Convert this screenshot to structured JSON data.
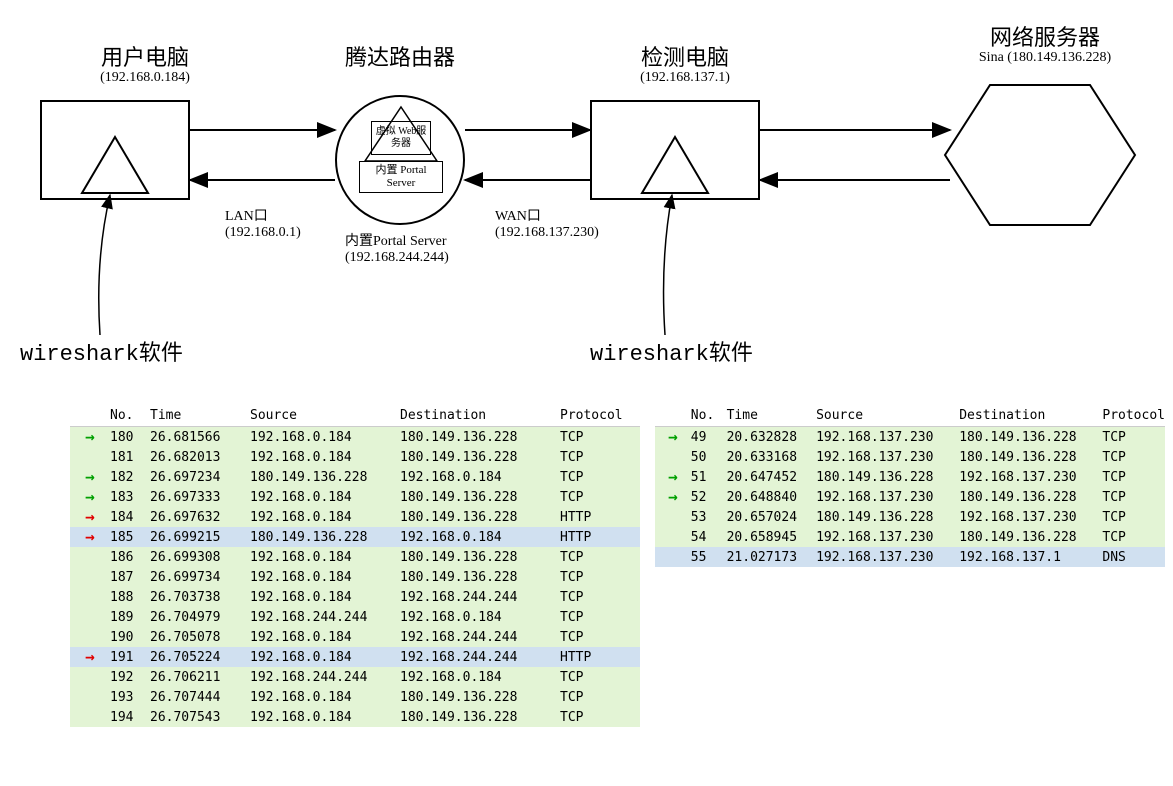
{
  "diagram": {
    "nodes": {
      "user_pc": {
        "title": "用户电脑",
        "ip": "(192.168.0.184)"
      },
      "router": {
        "title": "腾达路由器",
        "inner_top": "虚拟\nWeb服务器",
        "inner_bottom": "内置\nPortal Server"
      },
      "detect_pc": {
        "title": "检测电脑",
        "ip": "(192.168.137.1)"
      },
      "server": {
        "title": "网络服务器",
        "ip": "Sina (180.149.136.228)"
      }
    },
    "labels": {
      "lan": "LAN口",
      "lan_ip": "(192.168.0.1)",
      "wan": "WAN口",
      "wan_ip": "(192.168.137.230)",
      "portal": "内置Portal Server",
      "portal_ip": "(192.168.244.244)",
      "wireshark": "wireshark软件"
    }
  },
  "table1": {
    "headers": [
      "No.",
      "Time",
      "Source",
      "Destination",
      "Protocol"
    ],
    "rows": [
      {
        "arrow": "g",
        "no": "180",
        "time": "26.681566",
        "src": "192.168.0.184",
        "dst": "180.149.136.228",
        "proto": "TCP",
        "hl": ""
      },
      {
        "arrow": "",
        "no": "181",
        "time": "26.682013",
        "src": "192.168.0.184",
        "dst": "180.149.136.228",
        "proto": "TCP",
        "hl": ""
      },
      {
        "arrow": "g",
        "no": "182",
        "time": "26.697234",
        "src": "180.149.136.228",
        "dst": "192.168.0.184",
        "proto": "TCP",
        "hl": ""
      },
      {
        "arrow": "g",
        "no": "183",
        "time": "26.697333",
        "src": "192.168.0.184",
        "dst": "180.149.136.228",
        "proto": "TCP",
        "hl": ""
      },
      {
        "arrow": "r",
        "no": "184",
        "time": "26.697632",
        "src": "192.168.0.184",
        "dst": "180.149.136.228",
        "proto": "HTTP",
        "hl": ""
      },
      {
        "arrow": "r",
        "no": "185",
        "time": "26.699215",
        "src": "180.149.136.228",
        "dst": "192.168.0.184",
        "proto": "HTTP",
        "hl": "blue"
      },
      {
        "arrow": "",
        "no": "186",
        "time": "26.699308",
        "src": "192.168.0.184",
        "dst": "180.149.136.228",
        "proto": "TCP",
        "hl": ""
      },
      {
        "arrow": "",
        "no": "187",
        "time": "26.699734",
        "src": "192.168.0.184",
        "dst": "180.149.136.228",
        "proto": "TCP",
        "hl": ""
      },
      {
        "arrow": "",
        "no": "188",
        "time": "26.703738",
        "src": "192.168.0.184",
        "dst": "192.168.244.244",
        "proto": "TCP",
        "hl": ""
      },
      {
        "arrow": "",
        "no": "189",
        "time": "26.704979",
        "src": "192.168.244.244",
        "dst": "192.168.0.184",
        "proto": "TCP",
        "hl": ""
      },
      {
        "arrow": "",
        "no": "190",
        "time": "26.705078",
        "src": "192.168.0.184",
        "dst": "192.168.244.244",
        "proto": "TCP",
        "hl": ""
      },
      {
        "arrow": "r",
        "no": "191",
        "time": "26.705224",
        "src": "192.168.0.184",
        "dst": "192.168.244.244",
        "proto": "HTTP",
        "hl": "blue"
      },
      {
        "arrow": "",
        "no": "192",
        "time": "26.706211",
        "src": "192.168.244.244",
        "dst": "192.168.0.184",
        "proto": "TCP",
        "hl": ""
      },
      {
        "arrow": "",
        "no": "193",
        "time": "26.707444",
        "src": "192.168.0.184",
        "dst": "180.149.136.228",
        "proto": "TCP",
        "hl": ""
      },
      {
        "arrow": "",
        "no": "194",
        "time": "26.707543",
        "src": "192.168.0.184",
        "dst": "180.149.136.228",
        "proto": "TCP",
        "hl": ""
      }
    ]
  },
  "table2": {
    "headers": [
      "No.",
      "Time",
      "Source",
      "Destination",
      "Protocol"
    ],
    "rows": [
      {
        "arrow": "g",
        "no": "49",
        "time": "20.632828",
        "src": "192.168.137.230",
        "dst": "180.149.136.228",
        "proto": "TCP",
        "hl": ""
      },
      {
        "arrow": "",
        "no": "50",
        "time": "20.633168",
        "src": "192.168.137.230",
        "dst": "180.149.136.228",
        "proto": "TCP",
        "hl": ""
      },
      {
        "arrow": "g",
        "no": "51",
        "time": "20.647452",
        "src": "180.149.136.228",
        "dst": "192.168.137.230",
        "proto": "TCP",
        "hl": ""
      },
      {
        "arrow": "g",
        "no": "52",
        "time": "20.648840",
        "src": "192.168.137.230",
        "dst": "180.149.136.228",
        "proto": "TCP",
        "hl": ""
      },
      {
        "arrow": "",
        "no": "53",
        "time": "20.657024",
        "src": "180.149.136.228",
        "dst": "192.168.137.230",
        "proto": "TCP",
        "hl": ""
      },
      {
        "arrow": "",
        "no": "54",
        "time": "20.658945",
        "src": "192.168.137.230",
        "dst": "180.149.136.228",
        "proto": "TCP",
        "hl": ""
      },
      {
        "arrow": "",
        "no": "55",
        "time": "21.027173",
        "src": "192.168.137.230",
        "dst": "192.168.137.1",
        "proto": "DNS",
        "hl": "blue"
      }
    ]
  },
  "colors": {
    "row_green": "#e3f4d5",
    "row_blue": "#d0e0f0",
    "arrow_green": "#00a000",
    "arrow_red": "#e00000"
  }
}
